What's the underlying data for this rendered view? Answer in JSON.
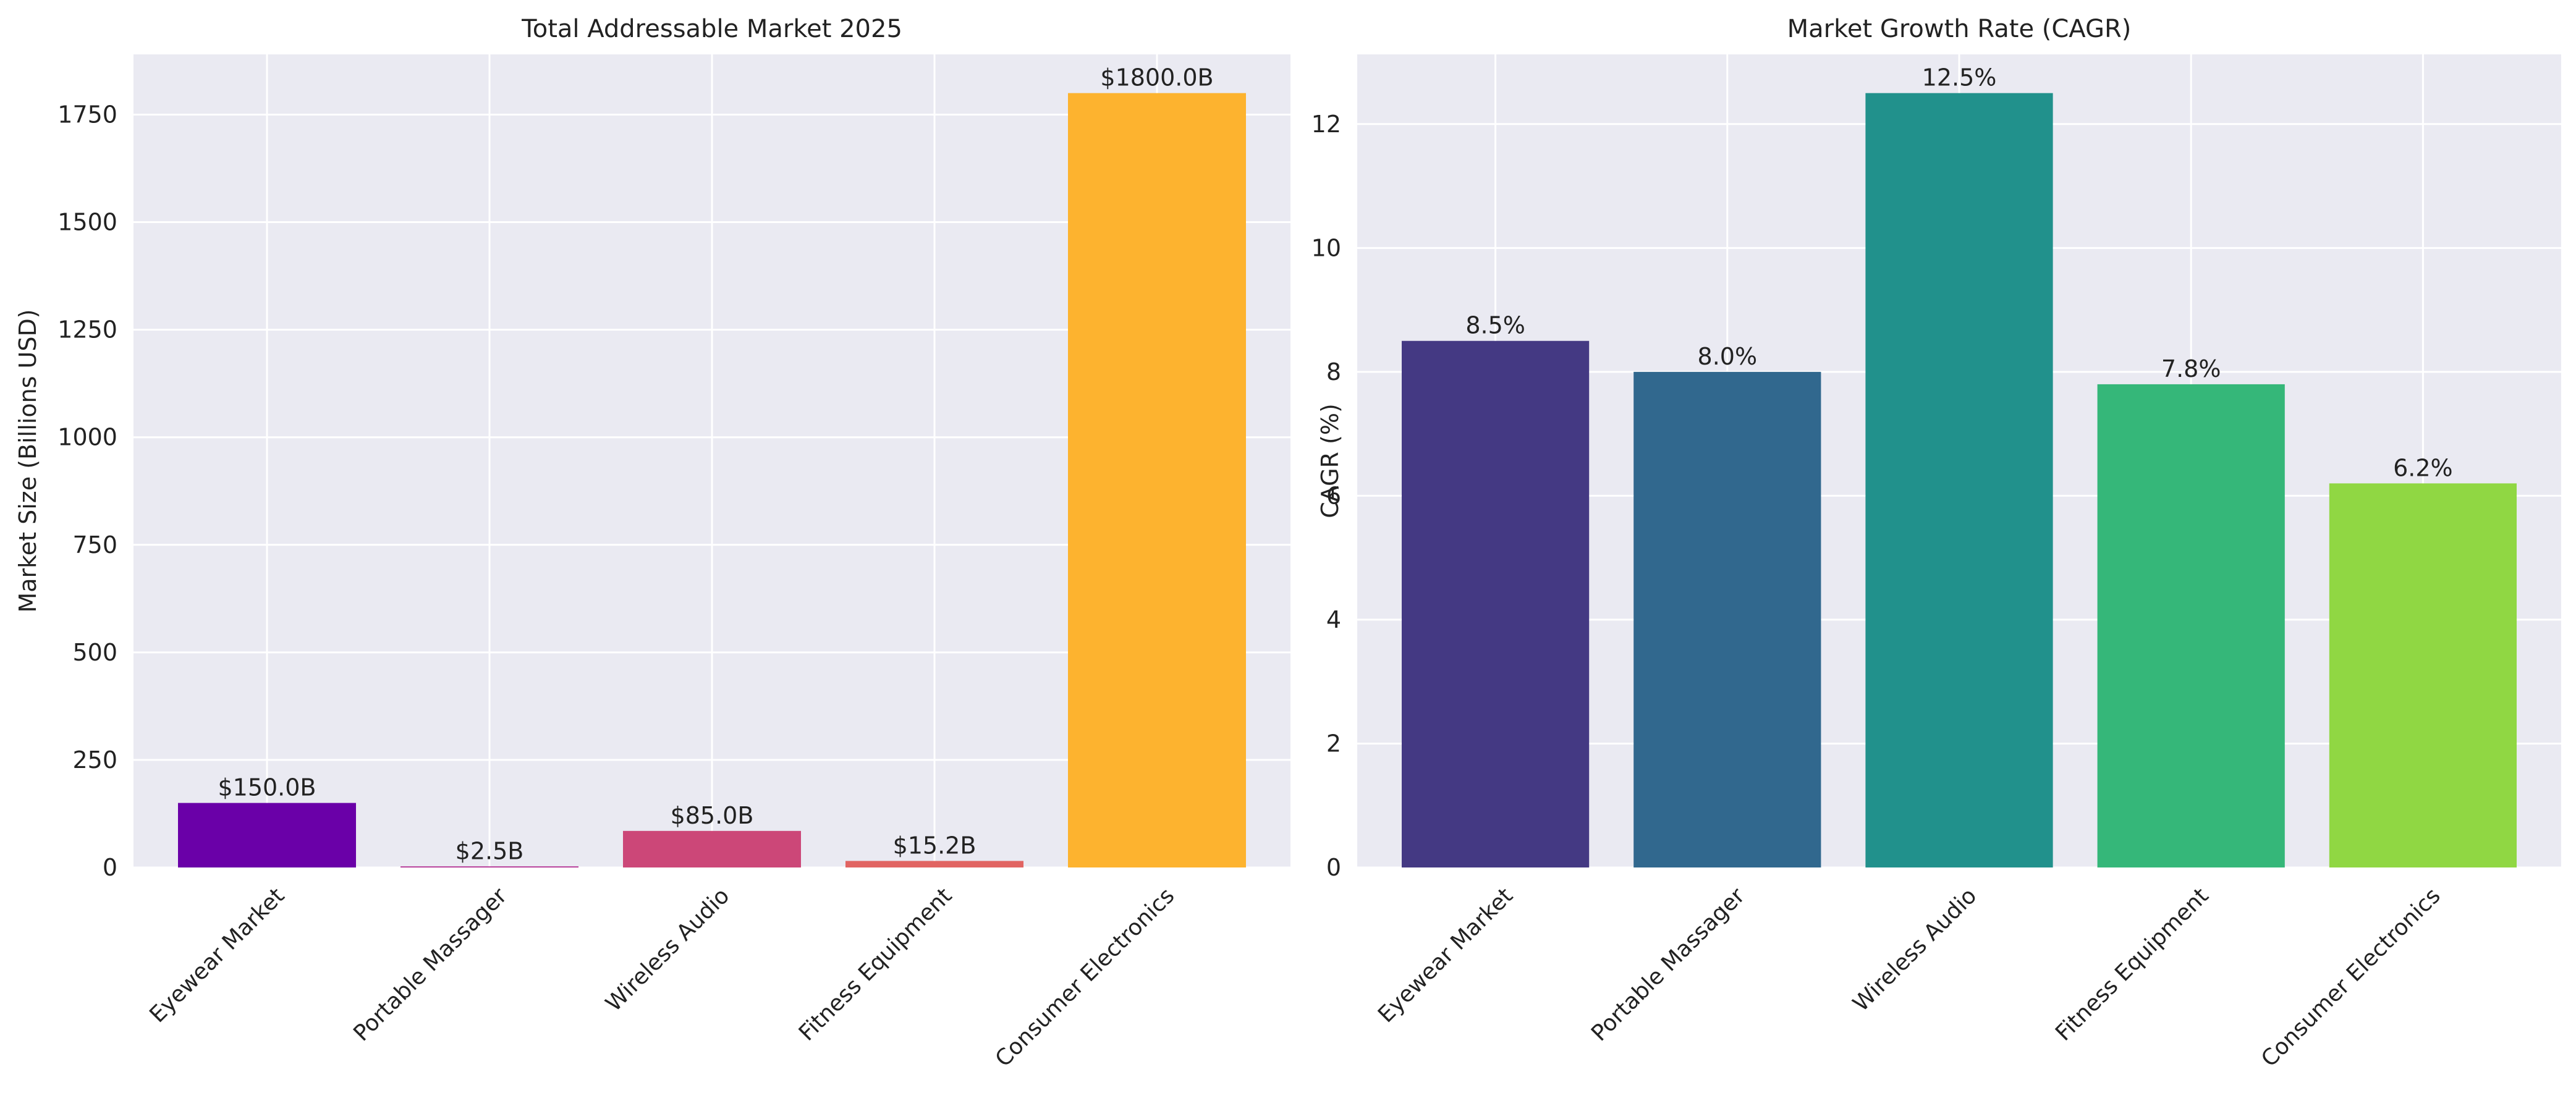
{
  "chart_data": [
    {
      "type": "bar",
      "title": "Total Addressable Market 2025",
      "ylabel": "Market Size (Billions USD)",
      "xlabel": "",
      "categories": [
        "Eyewear Market",
        "Portable Massager",
        "Wireless Audio",
        "Fitness Equipment",
        "Consumer Electronics"
      ],
      "values": [
        150.0,
        2.5,
        85.0,
        15.2,
        1800.0
      ],
      "value_labels": [
        "$150.0B",
        "$2.5B",
        "$85.0B",
        "$15.2B",
        "$1800.0B"
      ],
      "colors": [
        "#6a00a8",
        "#b12a90",
        "#cc4778",
        "#e16462",
        "#fdb32f"
      ],
      "ylim": [
        0,
        1890
      ],
      "yticks": [
        0,
        250,
        500,
        750,
        1000,
        1250,
        1500,
        1750
      ],
      "ytick_labels": [
        "0",
        "250",
        "500",
        "750",
        "1000",
        "1250",
        "1500",
        "1750"
      ],
      "grid": true
    },
    {
      "type": "bar",
      "title": "Market Growth Rate (CAGR)",
      "ylabel": "CAGR (%)",
      "xlabel": "",
      "categories": [
        "Eyewear Market",
        "Portable Massager",
        "Wireless Audio",
        "Fitness Equipment",
        "Consumer Electronics"
      ],
      "values": [
        8.5,
        8.0,
        12.5,
        7.8,
        6.2
      ],
      "value_labels": [
        "8.5%",
        "8.0%",
        "12.5%",
        "7.8%",
        "6.2%"
      ],
      "colors": [
        "#443983",
        "#31688e",
        "#21918c",
        "#35b779",
        "#90d743"
      ],
      "ylim": [
        0,
        13.125
      ],
      "yticks": [
        0,
        2,
        4,
        6,
        8,
        10,
        12
      ],
      "ytick_labels": [
        "0",
        "2",
        "4",
        "6",
        "8",
        "10",
        "12"
      ],
      "grid": true
    }
  ]
}
